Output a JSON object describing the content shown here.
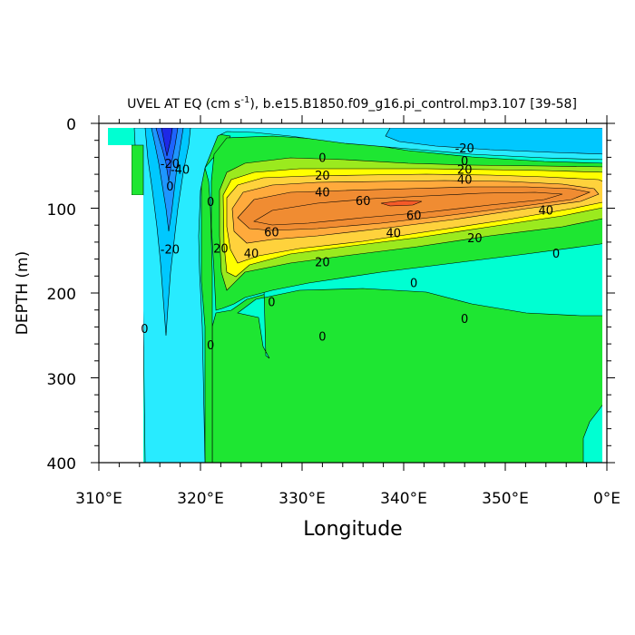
{
  "chart_data": {
    "type": "heatmap",
    "plot_kind": "filled depth-longitude contour section",
    "title_parts": {
      "pre": "UVEL AT EQ (cm s",
      "sup": "-1",
      "post": "), b.e15.B1850.f09_g16.pi_control.mp3.107 [39-58]"
    },
    "xlabel": "Longitude",
    "ylabel": "DEPTH (m)",
    "x_ticks": [
      "310°E",
      "320°E",
      "330°E",
      "340°E",
      "350°E",
      "0°E"
    ],
    "y_ticks": [
      "0",
      "100",
      "200",
      "300",
      "400"
    ],
    "xlim_deg_east": [
      310,
      360
    ],
    "ylim_depth_m": [
      0,
      400
    ],
    "y_reversed": true,
    "fill_levels": [
      {
        "range": "< -50",
        "color": "#1e28e6"
      },
      {
        "range": "-50 to -30",
        "color": "#1e64ff"
      },
      {
        "range": "-30 to -20",
        "color": "#1e96ff"
      },
      {
        "range": "-20 to -10",
        "color": "#00c8ff"
      },
      {
        "range": "-10 to 0",
        "color": "#28ebff"
      },
      {
        "range": "0 to 10",
        "color": "#00ffd2"
      },
      {
        "range": "10 to 20",
        "color": "#1ee632"
      },
      {
        "range": "20 to 30",
        "color": "#9bea1e"
      },
      {
        "range": "30 to 40",
        "color": "#ffff00"
      },
      {
        "range": "40 to 50",
        "color": "#ffd23c"
      },
      {
        "range": "50 to 60",
        "color": "#ffaa3c"
      },
      {
        "range": "60 to 70",
        "color": "#f08c32"
      },
      {
        "range": "> 70",
        "color": "#f55a28"
      }
    ],
    "contour_labels": [
      {
        "text": "-20",
        "lon": 317.0,
        "depth": 48
      },
      {
        "text": "-40",
        "lon": 318.0,
        "depth": 55
      },
      {
        "text": "0",
        "lon": 317.0,
        "depth": 75
      },
      {
        "text": "-20",
        "lon": 317.0,
        "depth": 149
      },
      {
        "text": "0",
        "lon": 321.0,
        "depth": 93
      },
      {
        "text": "20",
        "lon": 322.0,
        "depth": 148
      },
      {
        "text": "0",
        "lon": 314.5,
        "depth": 243
      },
      {
        "text": "0",
        "lon": 321.0,
        "depth": 262
      },
      {
        "text": "0",
        "lon": 332.0,
        "depth": 41
      },
      {
        "text": "-20",
        "lon": 346.0,
        "depth": 30
      },
      {
        "text": "0",
        "lon": 346.0,
        "depth": 45
      },
      {
        "text": "20",
        "lon": 332.0,
        "depth": 62
      },
      {
        "text": "20",
        "lon": 346.0,
        "depth": 55
      },
      {
        "text": "40",
        "lon": 332.0,
        "depth": 82
      },
      {
        "text": "40",
        "lon": 346.0,
        "depth": 67
      },
      {
        "text": "60",
        "lon": 336.0,
        "depth": 92
      },
      {
        "text": "60",
        "lon": 341.0,
        "depth": 109
      },
      {
        "text": "60",
        "lon": 327.0,
        "depth": 129
      },
      {
        "text": "40",
        "lon": 339.0,
        "depth": 130
      },
      {
        "text": "40",
        "lon": 325.0,
        "depth": 154
      },
      {
        "text": "40",
        "lon": 354.0,
        "depth": 103
      },
      {
        "text": "20",
        "lon": 347.0,
        "depth": 136
      },
      {
        "text": "20",
        "lon": 332.0,
        "depth": 164
      },
      {
        "text": "0",
        "lon": 355.0,
        "depth": 154
      },
      {
        "text": "0",
        "lon": 341.0,
        "depth": 189
      },
      {
        "text": "0",
        "lon": 346.0,
        "depth": 231
      },
      {
        "text": "0",
        "lon": 327.0,
        "depth": 211
      },
      {
        "text": "0",
        "lon": 332.0,
        "depth": 252
      }
    ],
    "grid": false,
    "legend": "none"
  }
}
